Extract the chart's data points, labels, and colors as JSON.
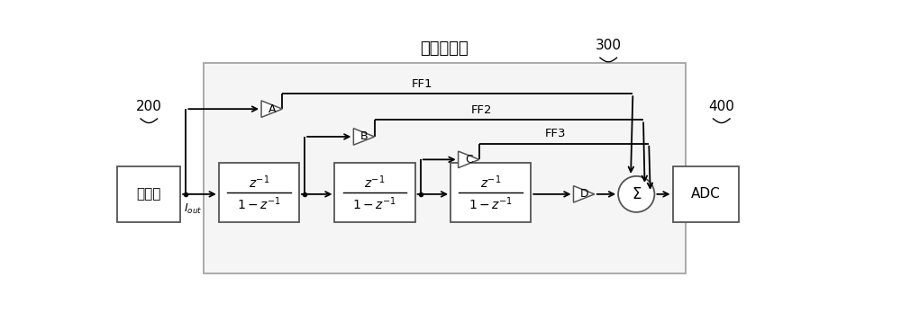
{
  "title": "环路滤波器",
  "phase_det_label": "鉴相器",
  "adc_label": "ADC",
  "label_200": "200",
  "label_300": "300",
  "label_400": "400",
  "iout_label": "$I_{out}$",
  "ff_labels": [
    "FF1",
    "FF2",
    "FF3"
  ],
  "amp_labels": [
    "A",
    "B",
    "C",
    "D"
  ],
  "sum_label": "Σ",
  "bg_color": "#ffffff",
  "box_edge_color": "#666666",
  "lf_box_color": "#aaaaaa",
  "lf_face_color": "#f5f5f5"
}
